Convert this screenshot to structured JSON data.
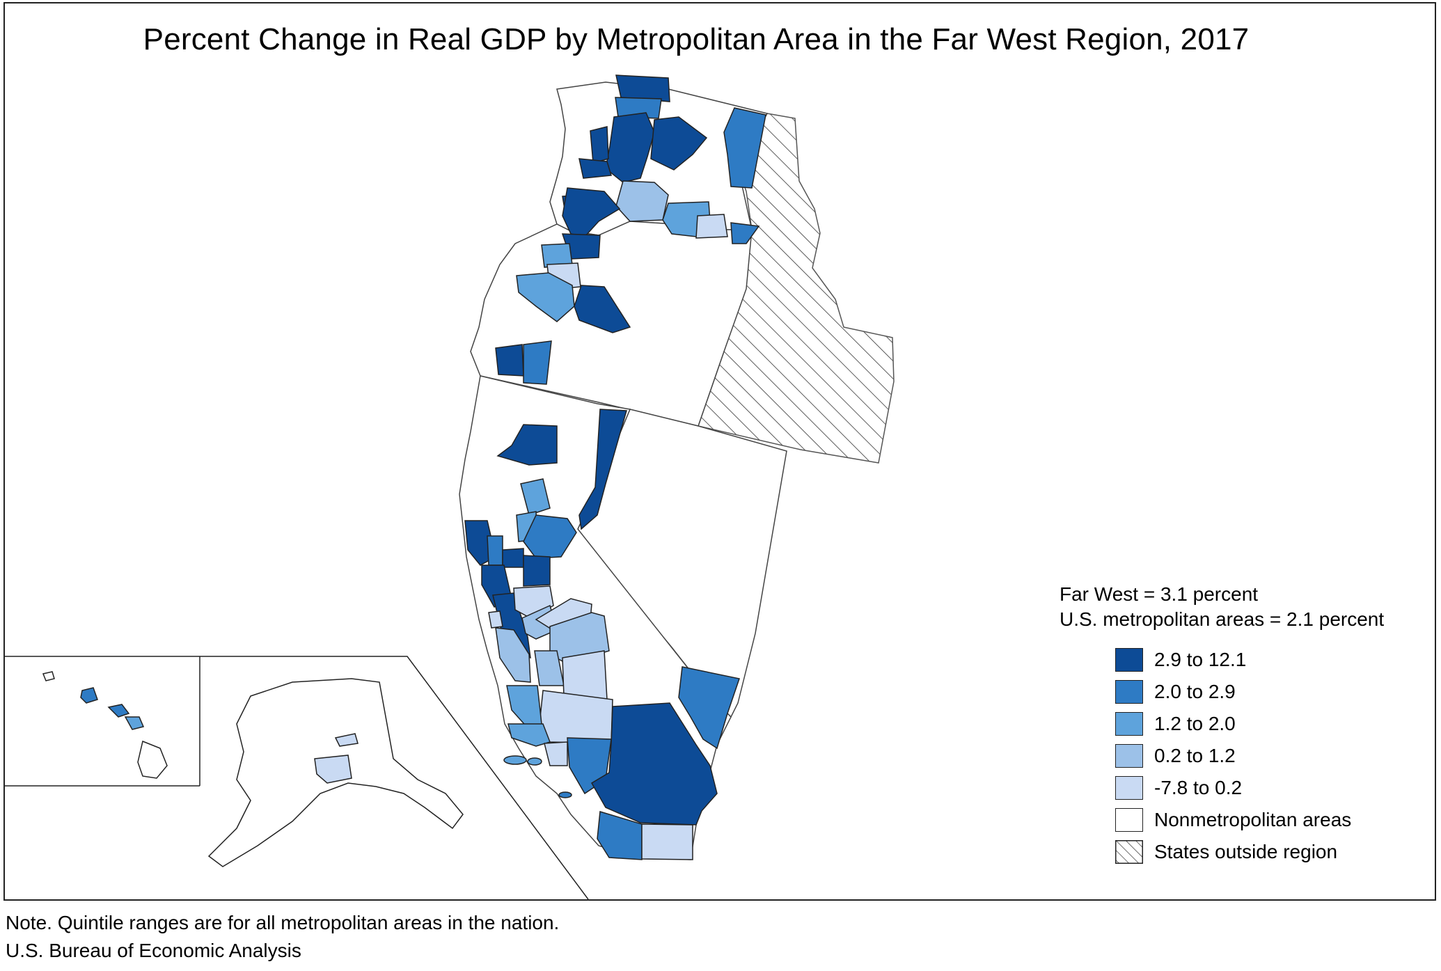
{
  "title": "Percent Change in Real GDP by Metropolitan Area in the Far West Region, 2017",
  "summary": {
    "far_west": "Far West = 3.1 percent",
    "us_metro": "U.S. metropolitan areas = 2.1 percent"
  },
  "legend": {
    "items": [
      {
        "label": "2.9 to 12.1",
        "color": "#0d4b96"
      },
      {
        "label": "2.0 to 2.9",
        "color": "#2e7bc4"
      },
      {
        "label": "1.2 to 2.0",
        "color": "#5ea3dc"
      },
      {
        "label": "0.2 to 1.2",
        "color": "#9cc1e8"
      },
      {
        "label": "-7.8 to 0.2",
        "color": "#c9daf3"
      },
      {
        "label": "Nonmetropolitan areas",
        "color": "#ffffff"
      },
      {
        "label": "States outside region",
        "pattern": "hatch"
      }
    ]
  },
  "note": "Note. Quintile ranges are for all metropolitan areas in the nation.",
  "source": "U.S. Bureau of Economic Analysis",
  "colors": {
    "q1": "#0d4b96",
    "q2": "#2e7bc4",
    "q3": "#5ea3dc",
    "q4": "#9cc1e8",
    "q5": "#c9daf3",
    "nonmetro": "#ffffff",
    "outline": "#222222"
  }
}
